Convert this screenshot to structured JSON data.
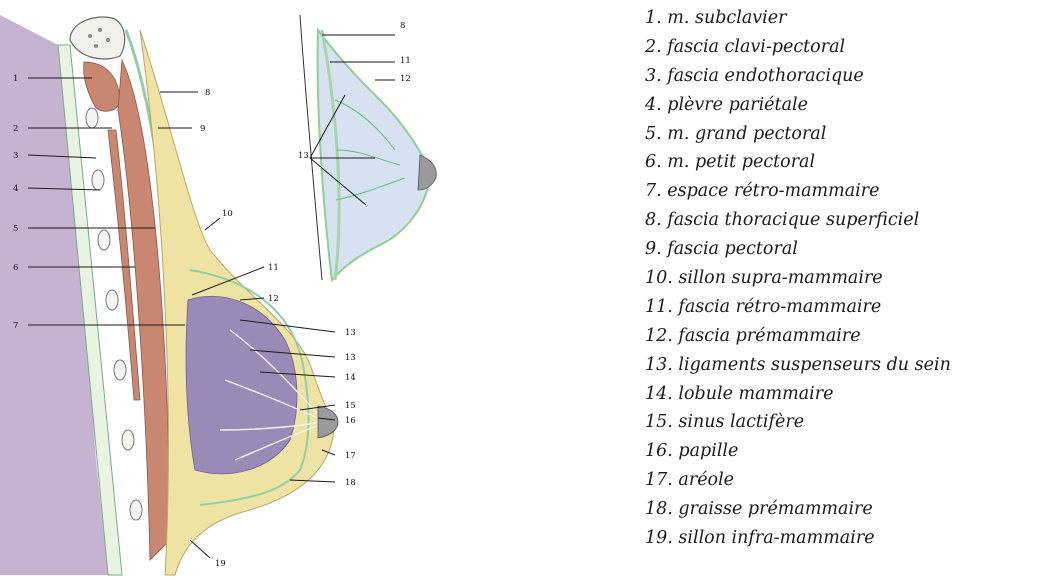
{
  "legend_items": [
    {
      "num": "1",
      "text": "1. m. subclavier"
    },
    {
      "num": "2",
      "text": "2. fascia clavi-pectoral"
    },
    {
      "num": "3",
      "text": "3. fascia endothoracique"
    },
    {
      "num": "4",
      "text": "4. plèvre pariétale"
    },
    {
      "num": "5",
      "text": "5. m. grand pectoral"
    },
    {
      "num": "6",
      "text": "6. m. petit pectoral"
    },
    {
      "num": "7",
      "text": "7. espace rétro-mammaire"
    },
    {
      "num": "8",
      "text": "8. fascia thoracique superficiel"
    },
    {
      "num": "9",
      "text": "9. fascia pectoral"
    },
    {
      "num": "10",
      "text": "10. sillon supra-mammaire"
    },
    {
      "num": "11",
      "text": "11. fascia rétro-mammaire"
    },
    {
      "num": "12",
      "text": "12. fascia prémammaire"
    },
    {
      "num": "13",
      "text": "13. ligaments suspenseurs du sein"
    },
    {
      "num": "14",
      "text": "14. lobule mammaire"
    },
    {
      "num": "15",
      "text": "15. sinus lactifère"
    },
    {
      "num": "16",
      "text": "16. papille"
    },
    {
      "num": "17",
      "text": "17. aréole"
    },
    {
      "num": "18",
      "text": "18. graisse prémammaire"
    },
    {
      "num": "19",
      "text": "19. sillon infra-mammaire"
    }
  ],
  "main_labels": [
    "1",
    "2",
    "3",
    "4",
    "5",
    "6",
    "7",
    "8",
    "9",
    "10",
    "11",
    "12",
    "13",
    "13",
    "14",
    "15",
    "16",
    "17",
    "18",
    "19"
  ],
  "inset_labels": [
    "8",
    "11",
    "12",
    "13"
  ],
  "colors": {
    "chest_wall": "#c6b3d2",
    "muscle": "#c98772",
    "fat": "#efe3a4",
    "fascia": "#8fcfa4",
    "lobule": "#9a8ab8",
    "inset_fill": "#d6e2f2",
    "inset_fascia": "#a6d6a6",
    "nipple": "#9a9a9a"
  }
}
